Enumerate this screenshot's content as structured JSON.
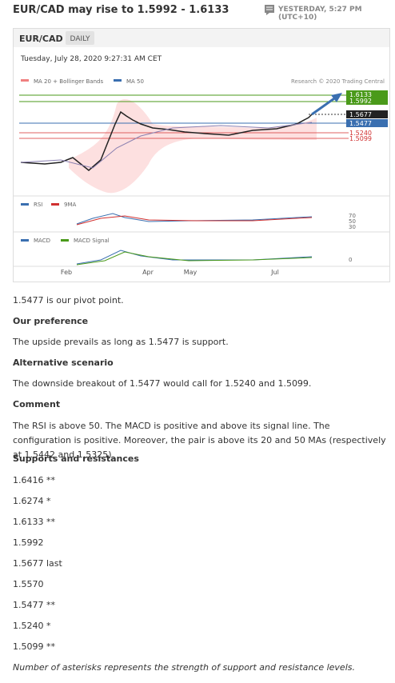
{
  "header": {
    "title": "EUR/CAD may rise to 1.5992 - 1.6133",
    "timestamp": "YESTERDAY, 5:27 PM (UTC+10)"
  },
  "chart": {
    "symbol": "EUR/CAD",
    "timeframe": "DAILY",
    "datetime": "Tuesday, July 28, 2020 9:27:31 AM CET",
    "legend": [
      "MA 20 + Bollinger Bands",
      "MA 50"
    ],
    "credit": "Research © 2020 Trading Central",
    "price_labels": [
      "1.6133",
      "1.5992",
      "1.5677",
      "1.5477",
      "1.5240",
      "1.5099"
    ],
    "rsi_legend": [
      "RSI",
      "9MA"
    ],
    "rsi_levels": [
      "70",
      "50",
      "30"
    ],
    "macd_legend": [
      "MACD",
      "MACD Signal"
    ],
    "macd_level": "0",
    "months": [
      "Feb",
      "Apr",
      "May",
      "Jul"
    ]
  },
  "body": {
    "pivot": "1.5477 is our pivot point.",
    "sections": [
      {
        "heading": "Our preference",
        "text": "The upside prevails as long as 1.5477 is support."
      },
      {
        "heading": "Alternative scenario",
        "text": "The downside breakout of 1.5477 would call for 1.5240 and 1.5099."
      },
      {
        "heading": "Comment",
        "text": "The RSI is above 50. The MACD is positive and above its signal line. The configuration is positive. Moreover, the pair is above its 20 and 50 MAs (respectively at 1.5442 and 1.5325)."
      }
    ],
    "levels_heading": "Supports and resistances",
    "levels": [
      "1.6416 **",
      "1.6274 *",
      "1.6133 **",
      "1.5992",
      "1.5677 last",
      "1.5570",
      "1.5477 **",
      "1.5240 *",
      "1.5099 **"
    ],
    "footnote": "Number of asterisks represents the strength of support and resistance levels."
  }
}
